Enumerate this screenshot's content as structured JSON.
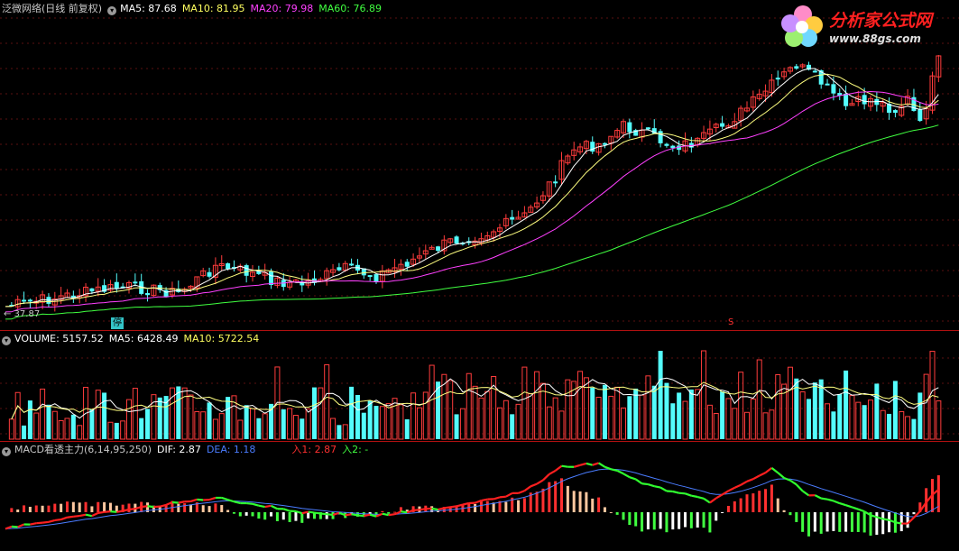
{
  "price": {
    "title": "泛微网络(日线 前复权)",
    "ma5_label": "MA5: 87.68",
    "ma10_label": "MA10: 81.95",
    "ma20_label": "MA20: 79.98",
    "ma60_label": "MA60: 76.89",
    "low_label": "← 37.87",
    "limit_tag": "停",
    "s_tag": "S"
  },
  "volume": {
    "label": "VOLUME: 5157.52",
    "ma5_label": "MA5: 6428.49",
    "ma10_label": "MA10: 5722.54"
  },
  "macd": {
    "label": "MACD看透主力(6,14,95,250)",
    "dif_label": "DIF: 2.87",
    "dea_label": "DEA: 1.18",
    "in1_label": "入1: 2.87",
    "in2_label": "入2: -"
  },
  "logo": {
    "text": "分析家公式网",
    "url": "www.88gs.com"
  },
  "colors": {
    "up": "#ff3c3c",
    "down": "#54fcfc",
    "ma5": "#ffffff",
    "ma10": "#ffff80",
    "ma20": "#ff40ff",
    "ma60": "#40ff40",
    "dea": "#4a7cff"
  }
}
